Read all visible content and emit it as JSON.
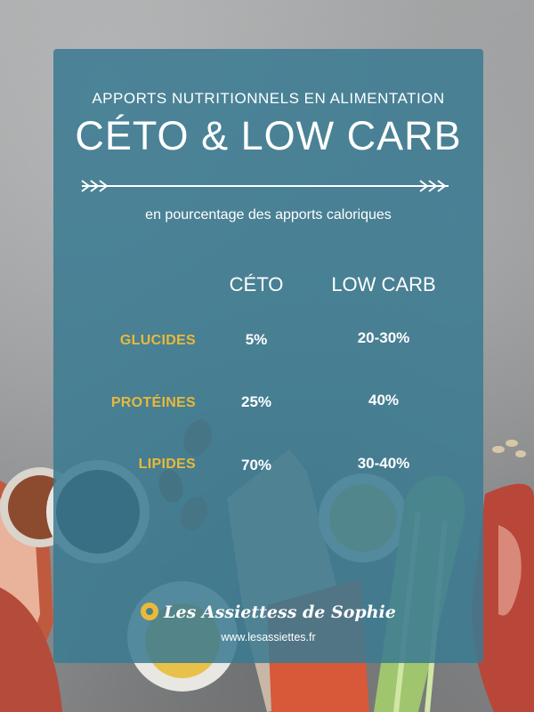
{
  "header": {
    "subtitle": "APPORTS NUTRITIONNELS EN ALIMENTATION",
    "title": "CÉTO & LOW CARB",
    "caption": "en pourcentage des apports caloriques"
  },
  "table": {
    "columns": [
      "CÉTO",
      "LOW CARB"
    ],
    "rows": [
      {
        "label": "GLUCIDES",
        "ceto": "5%",
        "lowcarb": "20-30%"
      },
      {
        "label": "PROTÉINES",
        "ceto": "25%",
        "lowcarb": "40%"
      },
      {
        "label": "LIPIDES",
        "ceto": "70%",
        "lowcarb": "30-40%"
      }
    ]
  },
  "brand": {
    "name": "Les Assiettess de Sophie",
    "url": "www.lesassiettes.fr"
  },
  "colors": {
    "panel": "#3a7a91",
    "accent": "#e9b93a",
    "text": "#ffffff"
  }
}
